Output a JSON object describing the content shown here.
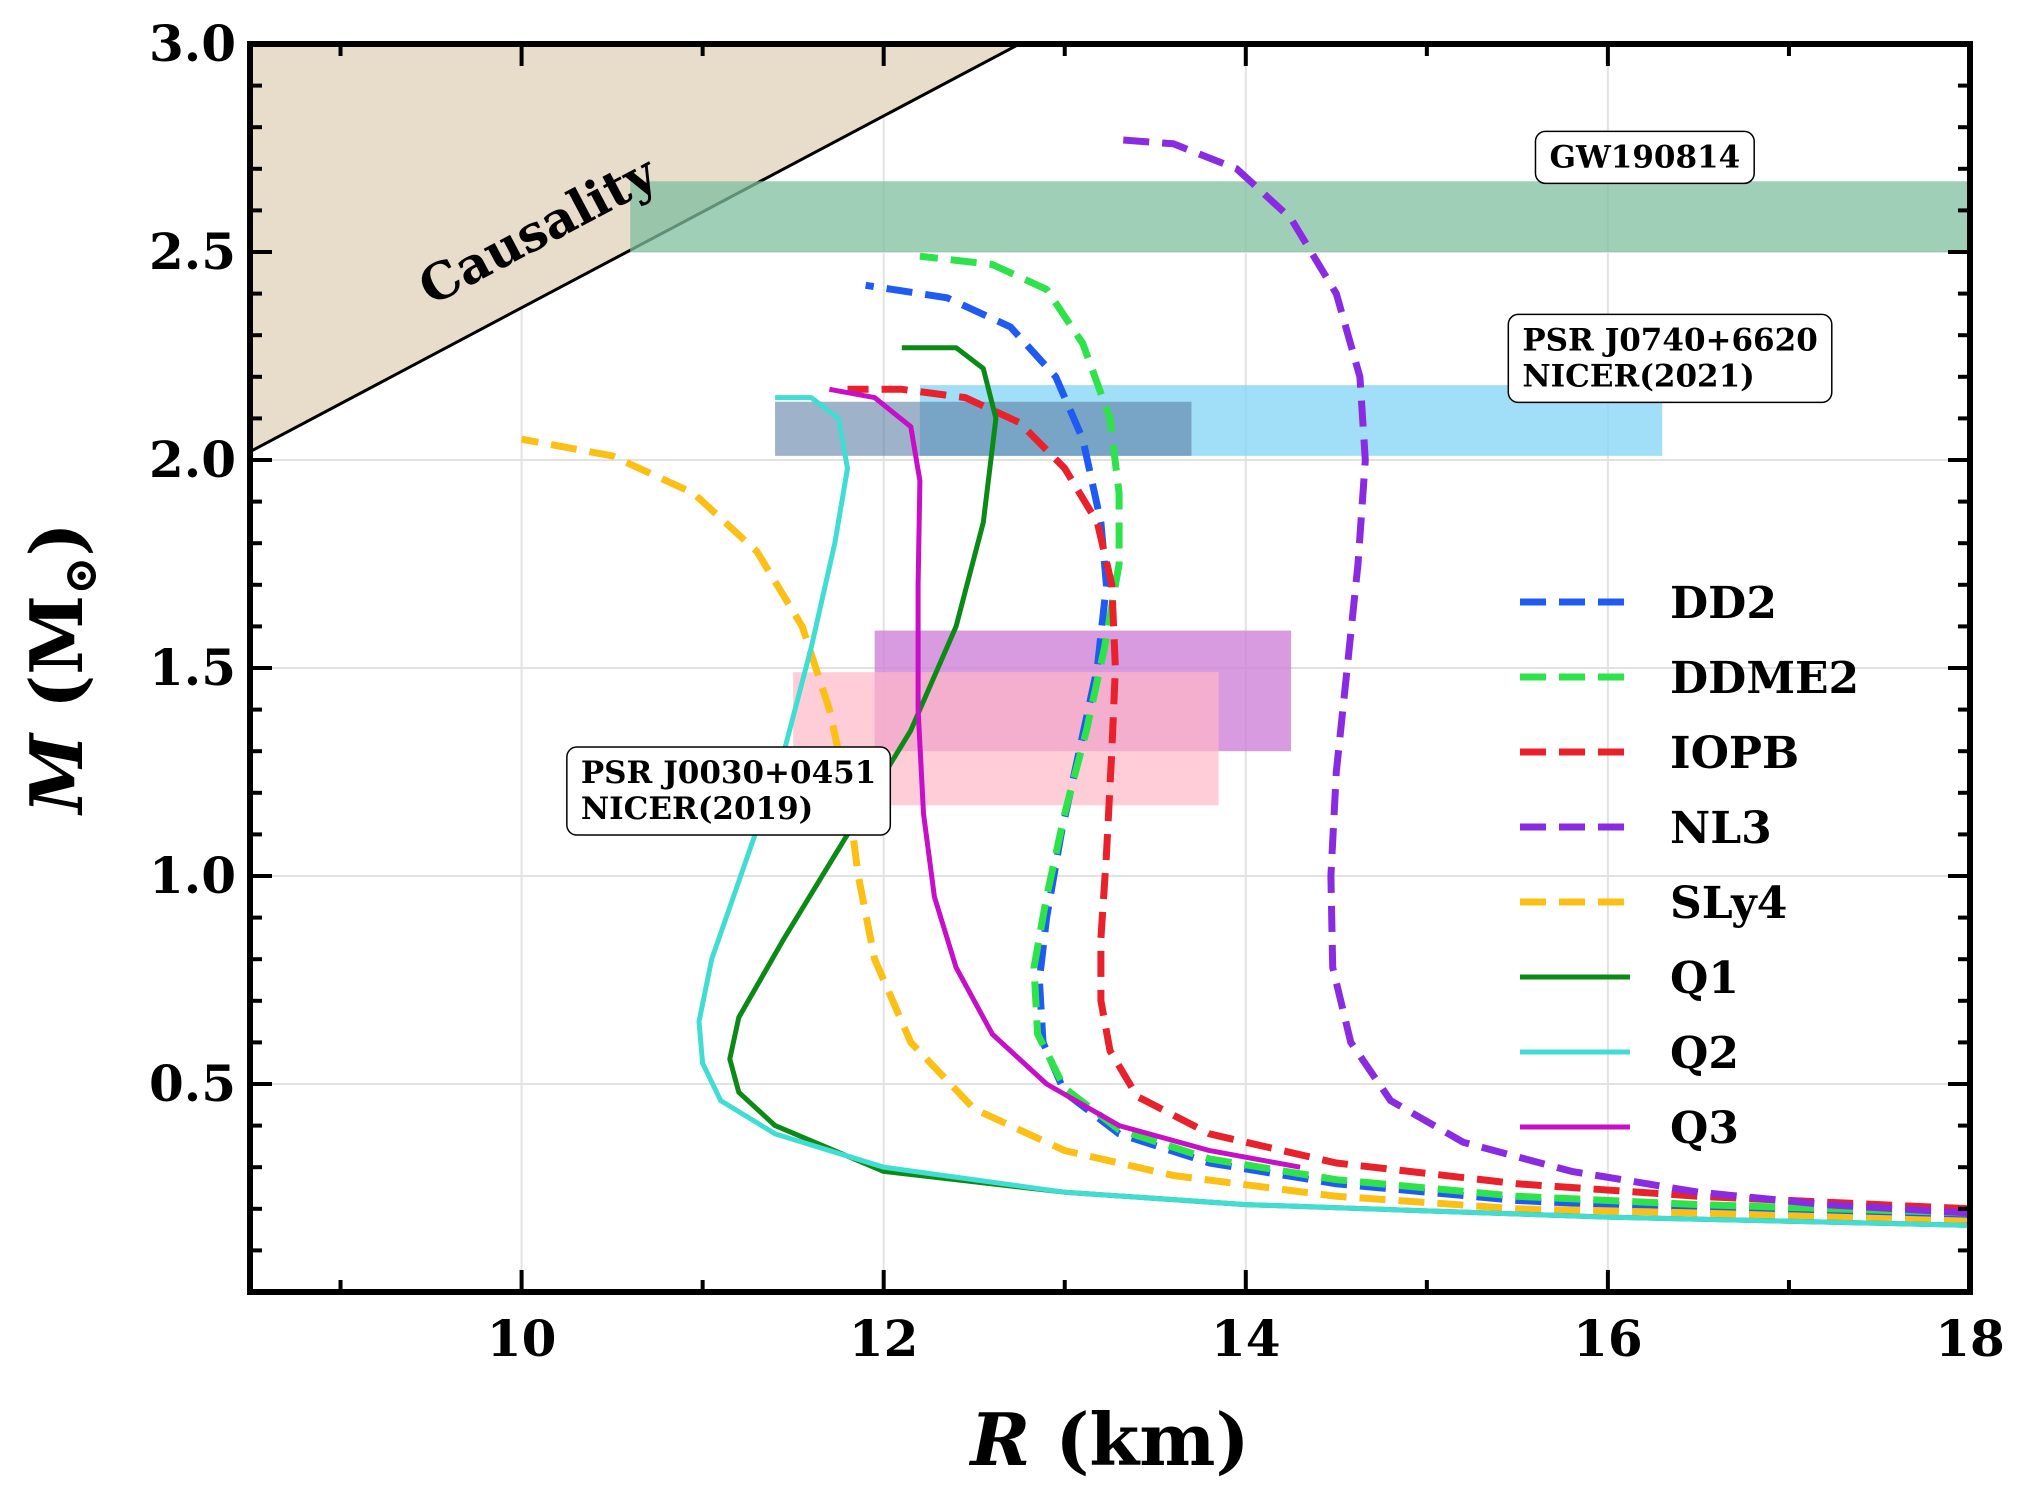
{
  "chart_data": {
    "type": "line",
    "xlabel": "R (km)",
    "xlabel_parts": [
      "R",
      " (km)"
    ],
    "ylabel": "M (M⊙)",
    "ylabel_parts": [
      "M",
      " (M",
      "⊙",
      ")"
    ],
    "xlim": [
      8.5,
      18
    ],
    "ylim": [
      0,
      3.0
    ],
    "x_ticks": [
      10,
      12,
      14,
      16,
      18
    ],
    "x_tick_labels": [
      "10",
      "12",
      "14",
      "16",
      "18"
    ],
    "y_ticks": [
      0.5,
      1.0,
      1.5,
      2.0,
      2.5,
      3.0
    ],
    "y_tick_labels": [
      "0.5",
      "1.0",
      "1.5",
      "2.0",
      "2.5",
      "3.0"
    ],
    "grid": true,
    "legend_position": "center-right",
    "causality": {
      "label": "Causality",
      "line": [
        [
          8.5,
          2.02
        ],
        [
          12.75,
          3.0
        ]
      ],
      "color": "#e8dccb"
    },
    "constraints": [
      {
        "id": "gw190814",
        "x": [
          10.6,
          18.0
        ],
        "y": [
          2.5,
          2.67
        ],
        "color": "#7fbf9f",
        "opacity": 0.75
      },
      {
        "id": "j0740-wide",
        "x": [
          12.2,
          16.3
        ],
        "y": [
          2.01,
          2.18
        ],
        "color": "#8ad6f5",
        "opacity": 0.8
      },
      {
        "id": "j0740-narrow",
        "x": [
          11.4,
          13.7
        ],
        "y": [
          2.01,
          2.14
        ],
        "color": "#5e7fa5",
        "opacity": 0.6
      },
      {
        "id": "j0030-a",
        "x": [
          11.95,
          14.25
        ],
        "y": [
          1.3,
          1.59
        ],
        "color": "#cf82d7",
        "opacity": 0.8
      },
      {
        "id": "j0030-b",
        "x": [
          11.5,
          13.85
        ],
        "y": [
          1.17,
          1.49
        ],
        "color": "#ffb8c8",
        "opacity": 0.7
      }
    ],
    "annotations": [
      {
        "id": "gw190814",
        "lines": [
          "GW190814"
        ],
        "anchor": [
          15.6,
          2.79
        ]
      },
      {
        "id": "psr-j0740",
        "lines": [
          "PSR J0740+6620",
          "NICER(2021)"
        ],
        "anchor": [
          15.45,
          2.35
        ]
      },
      {
        "id": "psr-j0030",
        "lines": [
          "PSR J0030+0451",
          "NICER(2019)"
        ],
        "anchor": [
          10.25,
          1.31
        ]
      }
    ],
    "series": [
      {
        "name": "DD2",
        "color": "#1f5bf2",
        "dash": true,
        "points": [
          [
            18.0,
            0.18
          ],
          [
            16.5,
            0.2
          ],
          [
            15.5,
            0.22
          ],
          [
            14.5,
            0.26
          ],
          [
            13.8,
            0.31
          ],
          [
            13.3,
            0.38
          ],
          [
            13.0,
            0.48
          ],
          [
            12.88,
            0.6
          ],
          [
            12.86,
            0.75
          ],
          [
            12.9,
            0.9
          ],
          [
            12.98,
            1.1
          ],
          [
            13.08,
            1.3
          ],
          [
            13.18,
            1.5
          ],
          [
            13.23,
            1.7
          ],
          [
            13.2,
            1.85
          ],
          [
            13.1,
            2.05
          ],
          [
            12.95,
            2.2
          ],
          [
            12.7,
            2.32
          ],
          [
            12.35,
            2.39
          ],
          [
            11.9,
            2.42
          ]
        ]
      },
      {
        "name": "DDME2",
        "color": "#2ee34a",
        "dash": true,
        "points": [
          [
            18.0,
            0.19
          ],
          [
            16.5,
            0.21
          ],
          [
            15.5,
            0.23
          ],
          [
            14.5,
            0.27
          ],
          [
            13.8,
            0.32
          ],
          [
            13.3,
            0.39
          ],
          [
            13.0,
            0.49
          ],
          [
            12.85,
            0.62
          ],
          [
            12.83,
            0.78
          ],
          [
            12.9,
            0.95
          ],
          [
            13.0,
            1.15
          ],
          [
            13.12,
            1.35
          ],
          [
            13.22,
            1.55
          ],
          [
            13.3,
            1.75
          ],
          [
            13.3,
            1.92
          ],
          [
            13.25,
            2.1
          ],
          [
            13.1,
            2.28
          ],
          [
            12.9,
            2.41
          ],
          [
            12.6,
            2.47
          ],
          [
            12.2,
            2.49
          ]
        ]
      },
      {
        "name": "IOPB",
        "color": "#e8212b",
        "dash": true,
        "points": [
          [
            18.0,
            0.2
          ],
          [
            16.5,
            0.23
          ],
          [
            15.5,
            0.26
          ],
          [
            14.5,
            0.31
          ],
          [
            13.8,
            0.38
          ],
          [
            13.4,
            0.47
          ],
          [
            13.25,
            0.58
          ],
          [
            13.2,
            0.7
          ],
          [
            13.2,
            0.85
          ],
          [
            13.23,
            1.05
          ],
          [
            13.26,
            1.3
          ],
          [
            13.28,
            1.5
          ],
          [
            13.26,
            1.7
          ],
          [
            13.18,
            1.85
          ],
          [
            13.0,
            1.98
          ],
          [
            12.75,
            2.09
          ],
          [
            12.45,
            2.15
          ],
          [
            12.1,
            2.17
          ],
          [
            11.8,
            2.17
          ]
        ]
      },
      {
        "name": "NL3",
        "color": "#8a2be2",
        "dash": true,
        "points": [
          [
            18.0,
            0.19
          ],
          [
            17.2,
            0.21
          ],
          [
            16.5,
            0.24
          ],
          [
            15.8,
            0.29
          ],
          [
            15.2,
            0.36
          ],
          [
            14.8,
            0.46
          ],
          [
            14.58,
            0.6
          ],
          [
            14.48,
            0.78
          ],
          [
            14.47,
            1.0
          ],
          [
            14.5,
            1.25
          ],
          [
            14.56,
            1.5
          ],
          [
            14.62,
            1.75
          ],
          [
            14.66,
            2.0
          ],
          [
            14.63,
            2.2
          ],
          [
            14.5,
            2.4
          ],
          [
            14.25,
            2.58
          ],
          [
            13.95,
            2.7
          ],
          [
            13.6,
            2.76
          ],
          [
            13.3,
            2.77
          ]
        ]
      },
      {
        "name": "SLy4",
        "color": "#fcbf16",
        "dash": true,
        "points": [
          [
            18.0,
            0.17
          ],
          [
            16.5,
            0.19
          ],
          [
            15.5,
            0.2
          ],
          [
            14.5,
            0.23
          ],
          [
            13.6,
            0.28
          ],
          [
            13.0,
            0.34
          ],
          [
            12.5,
            0.44
          ],
          [
            12.15,
            0.6
          ],
          [
            11.95,
            0.8
          ],
          [
            11.86,
            1.0
          ],
          [
            11.8,
            1.2
          ],
          [
            11.7,
            1.4
          ],
          [
            11.55,
            1.6
          ],
          [
            11.3,
            1.78
          ],
          [
            10.95,
            1.92
          ],
          [
            10.5,
            2.01
          ],
          [
            10.0,
            2.05
          ]
        ]
      },
      {
        "name": "Q1",
        "color": "#0b8a16",
        "dash": false,
        "points": [
          [
            18.0,
            0.16
          ],
          [
            16.0,
            0.18
          ],
          [
            14.0,
            0.21
          ],
          [
            13.0,
            0.24
          ],
          [
            12.0,
            0.29
          ],
          [
            11.4,
            0.4
          ],
          [
            11.2,
            0.48
          ],
          [
            11.15,
            0.56
          ],
          [
            11.2,
            0.66
          ],
          [
            11.45,
            0.85
          ],
          [
            11.8,
            1.1
          ],
          [
            12.15,
            1.35
          ],
          [
            12.4,
            1.6
          ],
          [
            12.55,
            1.85
          ],
          [
            12.62,
            2.1
          ],
          [
            12.55,
            2.22
          ],
          [
            12.4,
            2.27
          ],
          [
            12.1,
            2.27
          ]
        ]
      },
      {
        "name": "Q2",
        "color": "#42ddd2",
        "dash": false,
        "points": [
          [
            18.0,
            0.16
          ],
          [
            16.0,
            0.18
          ],
          [
            14.0,
            0.21
          ],
          [
            13.0,
            0.24
          ],
          [
            12.0,
            0.3
          ],
          [
            11.4,
            0.38
          ],
          [
            11.1,
            0.46
          ],
          [
            11.0,
            0.55
          ],
          [
            10.98,
            0.65
          ],
          [
            11.05,
            0.8
          ],
          [
            11.25,
            1.05
          ],
          [
            11.45,
            1.3
          ],
          [
            11.6,
            1.55
          ],
          [
            11.73,
            1.8
          ],
          [
            11.8,
            1.98
          ],
          [
            11.75,
            2.1
          ],
          [
            11.6,
            2.15
          ],
          [
            11.4,
            2.15
          ]
        ]
      },
      {
        "name": "Q3",
        "color": "#c60fc6",
        "dash": false,
        "points": [
          [
            14.3,
            0.3
          ],
          [
            13.8,
            0.34
          ],
          [
            13.3,
            0.4
          ],
          [
            12.9,
            0.5
          ],
          [
            12.6,
            0.62
          ],
          [
            12.4,
            0.78
          ],
          [
            12.28,
            0.95
          ],
          [
            12.22,
            1.15
          ],
          [
            12.19,
            1.4
          ],
          [
            12.19,
            1.7
          ],
          [
            12.2,
            1.95
          ],
          [
            12.15,
            2.08
          ],
          [
            11.95,
            2.15
          ],
          [
            11.7,
            2.17
          ]
        ]
      }
    ]
  }
}
